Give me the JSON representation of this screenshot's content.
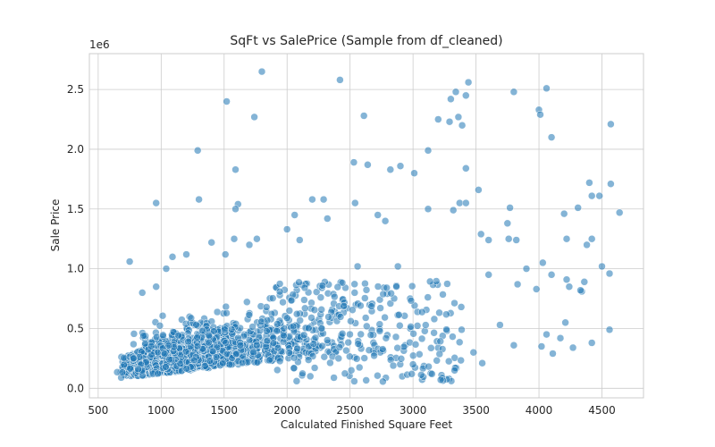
{
  "chart_data": {
    "type": "scatter",
    "title": "SqFt vs SalePrice (Sample from df_cleaned)",
    "xlabel": "Calculated Finished Square Feet",
    "ylabel": "Sale Price",
    "y_offset_label": "1e6",
    "xlim": [
      430,
      4830
    ],
    "ylim": [
      -0.08,
      2.8
    ],
    "x_ticks": [
      500,
      1000,
      1500,
      2000,
      2500,
      3000,
      3500,
      4000,
      4500
    ],
    "y_ticks": [
      0.0,
      0.5,
      1.0,
      1.5,
      2.0,
      2.5
    ],
    "y_tick_labels": [
      "0.0",
      "0.5",
      "1.0",
      "1.5",
      "2.0",
      "2.5"
    ],
    "grid": true,
    "color": "#1f77b4",
    "series": [
      {
        "points": [
          [
            1800,
            2.65
          ],
          [
            2420,
            2.58
          ],
          [
            3340,
            2.48
          ],
          [
            3440,
            2.56
          ],
          [
            3420,
            2.45
          ],
          [
            4060,
            2.51
          ],
          [
            3800,
            2.48
          ],
          [
            1520,
            2.4
          ],
          [
            1740,
            2.27
          ],
          [
            2610,
            2.28
          ],
          [
            3300,
            2.42
          ],
          [
            3200,
            2.25
          ],
          [
            3360,
            2.27
          ],
          [
            3390,
            2.2
          ],
          [
            3290,
            2.23
          ],
          [
            4000,
            2.33
          ],
          [
            4010,
            2.29
          ],
          [
            4570,
            2.21
          ],
          [
            4100,
            2.1
          ],
          [
            1290,
            1.99
          ],
          [
            3120,
            1.99
          ],
          [
            3010,
            1.8
          ],
          [
            2530,
            1.89
          ],
          [
            2640,
            1.87
          ],
          [
            2820,
            1.83
          ],
          [
            2900,
            1.86
          ],
          [
            1590,
            1.83
          ],
          [
            3420,
            1.84
          ],
          [
            4400,
            1.72
          ],
          [
            3520,
            1.66
          ],
          [
            4420,
            1.61
          ],
          [
            4480,
            1.61
          ],
          [
            4570,
            1.71
          ],
          [
            960,
            1.55
          ],
          [
            1300,
            1.58
          ],
          [
            1610,
            1.54
          ],
          [
            1590,
            1.5
          ],
          [
            2200,
            1.58
          ],
          [
            2290,
            1.58
          ],
          [
            2540,
            1.55
          ],
          [
            2060,
            1.45
          ],
          [
            2720,
            1.45
          ],
          [
            3120,
            1.5
          ],
          [
            3370,
            1.55
          ],
          [
            3420,
            1.55
          ],
          [
            3320,
            1.49
          ],
          [
            3770,
            1.51
          ],
          [
            4200,
            1.46
          ],
          [
            4310,
            1.51
          ],
          [
            4640,
            1.47
          ],
          [
            3750,
            1.38
          ],
          [
            2780,
            1.4
          ],
          [
            2320,
            1.42
          ],
          [
            1760,
            1.25
          ],
          [
            2000,
            1.33
          ],
          [
            2100,
            1.24
          ],
          [
            1700,
            1.2
          ],
          [
            1400,
            1.22
          ],
          [
            1580,
            1.25
          ],
          [
            3540,
            1.29
          ],
          [
            3600,
            1.24
          ],
          [
            3760,
            1.25
          ],
          [
            3820,
            1.24
          ],
          [
            4220,
            1.25
          ],
          [
            4380,
            1.2
          ],
          [
            4420,
            1.25
          ],
          [
            1090,
            1.1
          ],
          [
            1200,
            1.12
          ],
          [
            1510,
            1.12
          ],
          [
            750,
            1.06
          ],
          [
            1040,
            1.0
          ],
          [
            2560,
            1.02
          ],
          [
            2880,
            1.02
          ],
          [
            3600,
            0.95
          ],
          [
            3900,
            1.0
          ],
          [
            4030,
            1.05
          ],
          [
            4100,
            0.95
          ],
          [
            4500,
            1.02
          ],
          [
            4560,
            0.96
          ],
          [
            4220,
            0.91
          ],
          [
            4240,
            0.85
          ],
          [
            4340,
            0.81
          ],
          [
            4330,
            0.82
          ],
          [
            4360,
            0.89
          ],
          [
            960,
            0.85
          ],
          [
            850,
            0.8
          ],
          [
            3830,
            0.87
          ],
          [
            3980,
            0.83
          ],
          [
            4210,
            0.55
          ],
          [
            4270,
            0.34
          ],
          [
            4420,
            0.38
          ],
          [
            4560,
            0.49
          ],
          [
            4060,
            0.45
          ],
          [
            4110,
            0.29
          ],
          [
            4020,
            0.35
          ],
          [
            4170,
            0.42
          ],
          [
            3800,
            0.36
          ],
          [
            3690,
            0.53
          ],
          [
            3480,
            0.3
          ],
          [
            3550,
            0.21
          ],
          [
            3330,
            0.15
          ],
          [
            3220,
            0.07
          ],
          [
            3150,
            0.12
          ],
          [
            3000,
            0.2
          ],
          [
            2990,
            0.12
          ]
        ]
      }
    ]
  }
}
